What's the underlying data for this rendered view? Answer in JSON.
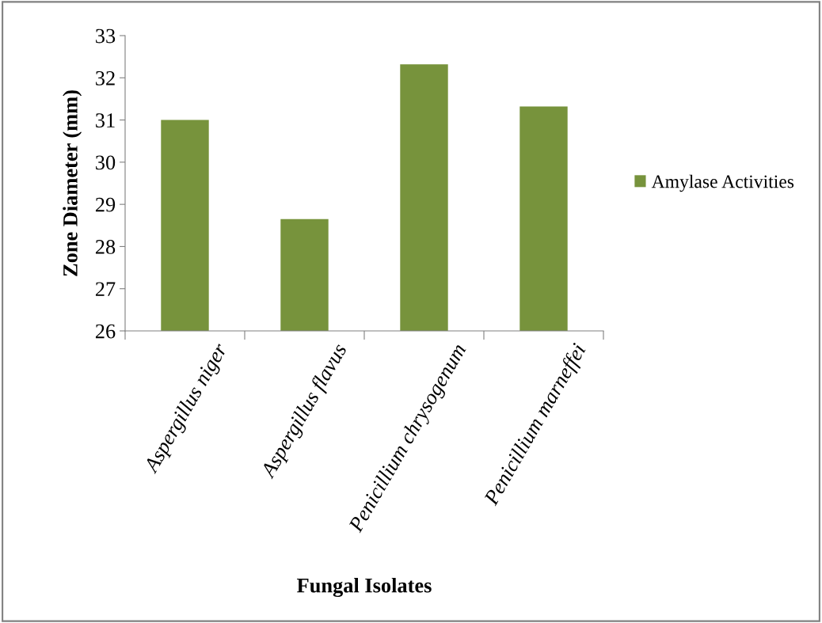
{
  "chart_data": {
    "type": "bar",
    "xlabel": "Fungal Isolates",
    "ylabel": "Zone Diameter (mm)",
    "categories": [
      "Aspergillus niger",
      "Aspergillus flavus",
      "Penicillium chrysogenum",
      "Penicillium marneffei"
    ],
    "series": [
      {
        "name": "Amylase Activities",
        "color": "#77933c",
        "values": [
          31.0,
          28.65,
          32.32,
          31.32
        ]
      }
    ],
    "ylim": [
      26,
      33
    ],
    "yticks": [
      26,
      27,
      28,
      29,
      30,
      31,
      32,
      33
    ],
    "grid": false,
    "legend": "right"
  }
}
